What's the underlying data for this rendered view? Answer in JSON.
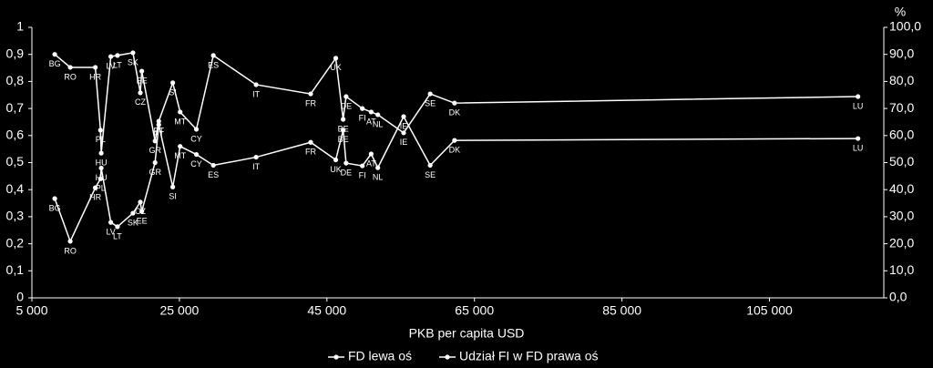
{
  "chart_data": {
    "type": "line",
    "x_label": "PKB per capita USD",
    "y2_unit": "%",
    "labels": [
      "BG",
      "RO",
      "HR",
      "PL",
      "HU",
      "LV",
      "LT",
      "SK",
      "CZ",
      "EE",
      "GR",
      "PT",
      "SI",
      "MT",
      "CY",
      "ES",
      "IT",
      "FR",
      "UK",
      "BE",
      "DE",
      "FI",
      "AT",
      "NL",
      "IE",
      "SE",
      "DK",
      "LU"
    ],
    "x": [
      8100,
      10200,
      13600,
      14300,
      14400,
      15700,
      16600,
      18700,
      19700,
      19900,
      21700,
      22200,
      24100,
      25100,
      27300,
      29600,
      35400,
      42800,
      46200,
      47200,
      47600,
      49800,
      51000,
      51900,
      55400,
      59000,
      62300,
      117000
    ],
    "series": [
      {
        "name": "FD lewa oś",
        "color": "#ffffff",
        "axis": "y",
        "values": [
          0.367,
          0.209,
          0.407,
          0.44,
          0.48,
          0.279,
          0.263,
          0.313,
          0.354,
          0.32,
          0.5,
          0.64,
          0.41,
          0.56,
          0.53,
          0.49,
          0.52,
          0.575,
          0.51,
          0.62,
          0.498,
          0.488,
          0.532,
          0.481,
          0.67,
          0.49,
          0.582,
          0.589
        ]
      },
      {
        "name": "Udział FI w FD prawa oś",
        "color": "#ffffff",
        "axis": "y2",
        "values": [
          90,
          85.2,
          85.2,
          62,
          53.5,
          89.2,
          89.6,
          90.6,
          75.8,
          83.8,
          58,
          65.3,
          79.5,
          68.7,
          62.3,
          89.6,
          78.8,
          75.4,
          88.6,
          66,
          74.4,
          70,
          68.7,
          67.7,
          61,
          75.4,
          72,
          74.4
        ]
      }
    ],
    "xlim": [
      5000,
      120500
    ],
    "xticks": [
      {
        "value": 5000,
        "label": "5 000"
      },
      {
        "value": 25000,
        "label": "25 000"
      },
      {
        "value": 45000,
        "label": "45 000"
      },
      {
        "value": 65000,
        "label": "65 000"
      },
      {
        "value": 85000,
        "label": "85 000"
      },
      {
        "value": 105000,
        "label": "105 000"
      }
    ],
    "ylim": [
      0,
      1
    ],
    "yticks": [
      0,
      {
        "value": 0.1,
        "label": "0,1"
      },
      {
        "value": 0.2,
        "label": "0,2"
      },
      {
        "value": 0.3,
        "label": "0,3"
      },
      {
        "value": 0.4,
        "label": "0,4"
      },
      {
        "value": 0.5,
        "label": "0,5"
      },
      {
        "value": 0.6,
        "label": "0,6"
      },
      {
        "value": 0.7,
        "label": "0,7"
      },
      {
        "value": 0.8,
        "label": "0,8"
      },
      {
        "value": 0.9,
        "label": "0,9"
      },
      1
    ],
    "y2lim": [
      0,
      100
    ],
    "y2ticks": [
      {
        "value": 0,
        "label": "0,0"
      },
      {
        "value": 10,
        "label": "10,0"
      },
      {
        "value": 20,
        "label": "20,0"
      },
      {
        "value": 30,
        "label": "30,0"
      },
      {
        "value": 40,
        "label": "40,0"
      },
      {
        "value": 50,
        "label": "50,0"
      },
      {
        "value": 60,
        "label": "60,0"
      },
      {
        "value": 70,
        "label": "70,0"
      },
      {
        "value": 80,
        "label": "80,0"
      },
      {
        "value": 90,
        "label": "90,0"
      },
      {
        "value": 100,
        "label": "100,0"
      }
    ],
    "legend": "bottom"
  }
}
